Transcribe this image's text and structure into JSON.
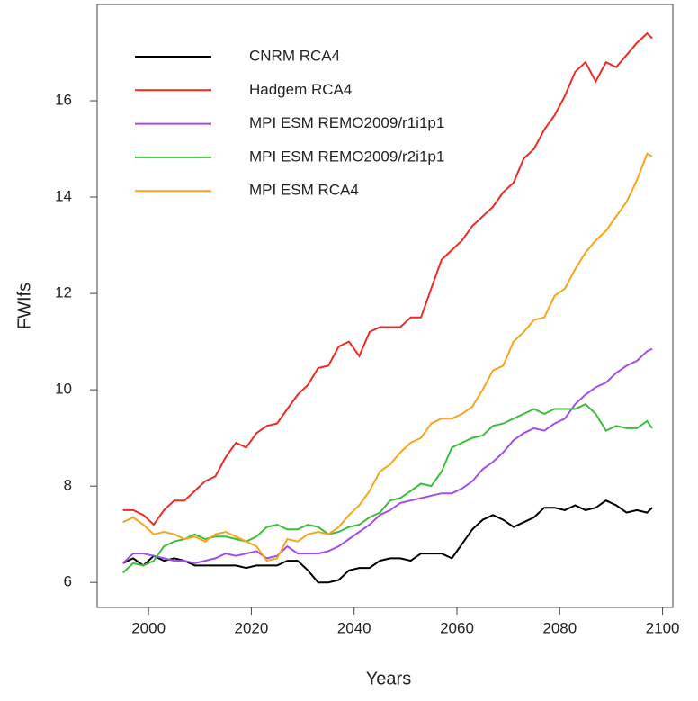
{
  "chart_data": {
    "type": "line",
    "x_label": "Years",
    "y_label": "FWIfs",
    "x": [
      1995,
      1997,
      1999,
      2001,
      2003,
      2005,
      2007,
      2009,
      2011,
      2013,
      2015,
      2017,
      2019,
      2021,
      2023,
      2025,
      2027,
      2029,
      2031,
      2033,
      2035,
      2037,
      2039,
      2041,
      2043,
      2045,
      2047,
      2049,
      2051,
      2053,
      2055,
      2057,
      2059,
      2061,
      2063,
      2065,
      2067,
      2069,
      2071,
      2073,
      2075,
      2077,
      2079,
      2081,
      2083,
      2085,
      2087,
      2089,
      2091,
      2093,
      2095,
      2097,
      2098
    ],
    "series": [
      {
        "name": "CNRM RCA4",
        "color": "#000000",
        "values": [
          6.4,
          6.5,
          6.35,
          6.55,
          6.45,
          6.5,
          6.45,
          6.35,
          6.35,
          6.35,
          6.35,
          6.35,
          6.3,
          6.35,
          6.35,
          6.35,
          6.45,
          6.45,
          6.25,
          6.0,
          6.0,
          6.05,
          6.25,
          6.3,
          6.3,
          6.45,
          6.5,
          6.5,
          6.45,
          6.6,
          6.6,
          6.6,
          6.5,
          6.8,
          7.1,
          7.3,
          7.4,
          7.3,
          7.15,
          7.25,
          7.35,
          7.55,
          7.55,
          7.5,
          7.6,
          7.5,
          7.55,
          7.7,
          7.6,
          7.45,
          7.5,
          7.45,
          7.55
        ]
      },
      {
        "name": "Hadgem RCA4",
        "color": "#ee2a24",
        "values": [
          7.5,
          7.5,
          7.4,
          7.2,
          7.5,
          7.7,
          7.7,
          7.9,
          8.1,
          8.2,
          8.6,
          8.9,
          8.8,
          9.1,
          9.25,
          9.3,
          9.6,
          9.9,
          10.1,
          10.45,
          10.5,
          10.9,
          11.0,
          10.7,
          11.2,
          11.3,
          11.3,
          11.3,
          11.5,
          11.5,
          12.1,
          12.7,
          12.9,
          13.1,
          13.4,
          13.6,
          13.8,
          14.1,
          14.3,
          14.8,
          15.0,
          15.4,
          15.7,
          16.1,
          16.6,
          16.8,
          16.4,
          16.8,
          16.7,
          16.95,
          17.2,
          17.4,
          17.3
        ]
      },
      {
        "name": "MPI ESM REMO2009/r1i1p1",
        "color": "#a24ee8",
        "values": [
          6.4,
          6.6,
          6.6,
          6.55,
          6.5,
          6.45,
          6.45,
          6.4,
          6.45,
          6.5,
          6.6,
          6.55,
          6.6,
          6.65,
          6.5,
          6.55,
          6.75,
          6.6,
          6.6,
          6.6,
          6.65,
          6.75,
          6.9,
          7.05,
          7.2,
          7.4,
          7.5,
          7.65,
          7.7,
          7.75,
          7.8,
          7.85,
          7.85,
          7.95,
          8.1,
          8.35,
          8.5,
          8.7,
          8.95,
          9.1,
          9.2,
          9.15,
          9.3,
          9.4,
          9.7,
          9.9,
          10.05,
          10.15,
          10.35,
          10.5,
          10.6,
          10.8,
          10.85
        ]
      },
      {
        "name": "MPI ESM REMO2009/r2i1p1",
        "color": "#3dbd3d",
        "values": [
          6.2,
          6.4,
          6.35,
          6.45,
          6.75,
          6.85,
          6.9,
          7.0,
          6.9,
          6.95,
          6.95,
          6.9,
          6.85,
          6.95,
          7.15,
          7.2,
          7.1,
          7.1,
          7.2,
          7.15,
          7.0,
          7.05,
          7.15,
          7.2,
          7.35,
          7.45,
          7.7,
          7.75,
          7.9,
          8.05,
          8.0,
          8.3,
          8.8,
          8.9,
          9.0,
          9.05,
          9.25,
          9.3,
          9.4,
          9.5,
          9.6,
          9.5,
          9.6,
          9.6,
          9.6,
          9.7,
          9.5,
          9.15,
          9.25,
          9.2,
          9.2,
          9.35,
          9.2
        ]
      },
      {
        "name": "MPI ESM RCA4",
        "color": "#f7a51c",
        "values": [
          7.25,
          7.35,
          7.2,
          7.0,
          7.05,
          7.0,
          6.9,
          6.95,
          6.85,
          7.0,
          7.05,
          6.95,
          6.85,
          6.75,
          6.45,
          6.5,
          6.9,
          6.85,
          7.0,
          7.05,
          7.0,
          7.15,
          7.4,
          7.6,
          7.9,
          8.3,
          8.45,
          8.7,
          8.9,
          9.0,
          9.3,
          9.4,
          9.4,
          9.5,
          9.65,
          10.0,
          10.4,
          10.5,
          11.0,
          11.2,
          11.45,
          11.5,
          11.95,
          12.1,
          12.5,
          12.85,
          13.1,
          13.3,
          13.6,
          13.9,
          14.35,
          14.9,
          14.85
        ]
      }
    ],
    "xlim": [
      1990,
      2102
    ],
    "ylim": [
      5.48,
      18.0
    ],
    "xticks": [
      2000,
      2020,
      2040,
      2060,
      2080,
      2100
    ],
    "yticks": [
      6,
      8,
      10,
      12,
      14,
      16
    ],
    "legend": "top-left"
  }
}
